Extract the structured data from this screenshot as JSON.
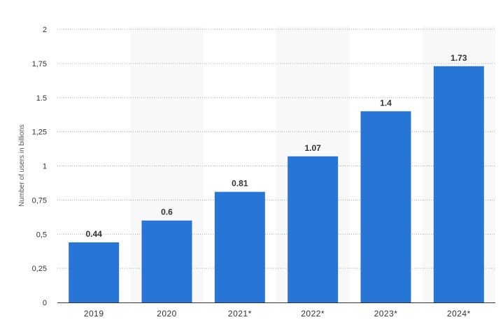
{
  "chart_data": {
    "type": "bar",
    "categories": [
      "2019",
      "2020",
      "2021*",
      "2022*",
      "2023*",
      "2024*"
    ],
    "values": [
      0.44,
      0.6,
      0.81,
      1.07,
      1.4,
      1.73
    ],
    "data_labels": [
      "0.44",
      "0.6",
      "0.81",
      "1.07",
      "1.4",
      "1.73"
    ],
    "ylabel": "Number of users in billions",
    "xlabel": "",
    "ylim": [
      0,
      2
    ],
    "yticks": [
      0,
      0.25,
      0.5,
      0.75,
      1,
      1.25,
      1.5,
      1.75,
      2
    ],
    "ytick_labels": [
      "0",
      "0,25",
      "0,5",
      "0,75",
      "1",
      "1,25",
      "1.5",
      "1,75",
      "2"
    ],
    "grid": true,
    "bar_color": "#2875d8",
    "band_color": "#f8f8f8"
  }
}
